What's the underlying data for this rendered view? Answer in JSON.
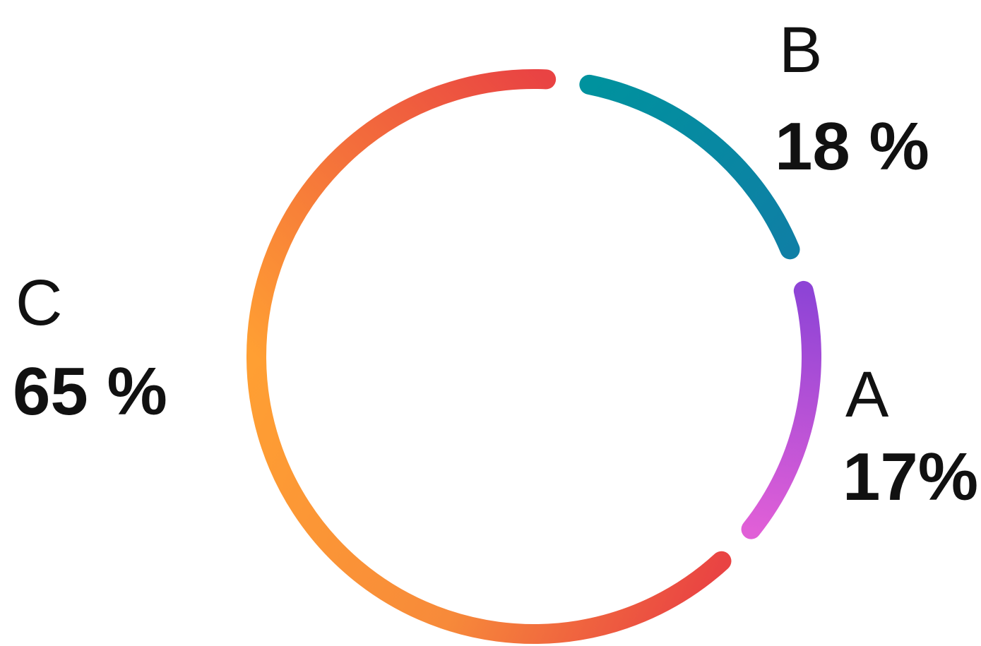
{
  "chart_data": {
    "type": "pie",
    "style": "donut-ring",
    "slices": [
      {
        "label": "A",
        "value": 17,
        "value_text": "17%",
        "color_start": "#8e44d6",
        "color_end": "#e05fd7"
      },
      {
        "label": "B",
        "value": 18,
        "value_text": "18 %",
        "color_start": "#00929e",
        "color_end": "#0f7fa5"
      },
      {
        "label": "C",
        "value": 65,
        "value_text": "65 %",
        "color_start": "#ff9f33",
        "color_end": "#e94343"
      }
    ],
    "legend": "none"
  }
}
